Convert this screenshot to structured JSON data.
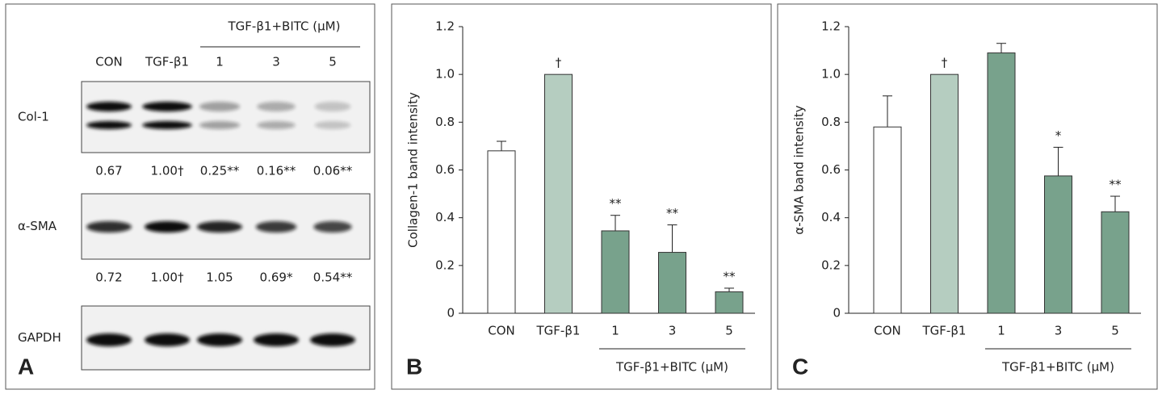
{
  "panel_a": {
    "letter": "A",
    "group_label": "TGF-β1+BITC (μM)",
    "lanes": [
      "CON",
      "TGF-β1",
      "1",
      "3",
      "5"
    ],
    "rows": [
      {
        "label": "Col-1",
        "quantities": [
          "0.67",
          "1.00†",
          "0.25**",
          "0.16**",
          "0.06**"
        ]
      },
      {
        "label": "α-SMA",
        "quantities": [
          "0.72",
          "1.00†",
          "1.05",
          "0.69*",
          "0.54**"
        ]
      },
      {
        "label": "GAPDH"
      }
    ]
  },
  "chart_data": [
    {
      "type": "bar",
      "panel": "B",
      "ylabel": "Collagen-1 band intensity",
      "group_label": "TGF-β1+BITC (μM)",
      "categories": [
        "CON",
        "TGF-β1",
        "1",
        "3",
        "5"
      ],
      "values": [
        0.68,
        1.0,
        0.345,
        0.255,
        0.09
      ],
      "errors": [
        0.04,
        0,
        0.065,
        0.115,
        0.015
      ],
      "annotations": [
        null,
        "†",
        "**",
        "**",
        "**"
      ],
      "colors": [
        "#ffffff",
        "#b5cdc0",
        "#78a28c",
        "#78a28c",
        "#78a28c"
      ],
      "ylim": [
        0,
        1.2
      ],
      "yticks": [
        0,
        0.2,
        0.4,
        0.6,
        0.8,
        {
          "value": 1,
          "label": "1.0"
        },
        1.2
      ]
    },
    {
      "type": "bar",
      "panel": "C",
      "ylabel": "α-SMA band intensity",
      "group_label": "TGF-β1+BITC (μM)",
      "categories": [
        "CON",
        "TGF-β1",
        "1",
        "3",
        "5"
      ],
      "values": [
        0.78,
        1.0,
        1.09,
        0.575,
        0.425
      ],
      "errors": [
        0.13,
        0,
        0.04,
        0.12,
        0.065
      ],
      "annotations": [
        null,
        "†",
        null,
        "*",
        "**"
      ],
      "colors": [
        "#ffffff",
        "#b5cdc0",
        "#78a28c",
        "#78a28c",
        "#78a28c"
      ],
      "ylim": [
        0,
        1.2
      ],
      "yticks": [
        0,
        0.2,
        0.4,
        0.6,
        0.8,
        {
          "value": 1,
          "label": "1.0"
        },
        1.2
      ]
    }
  ]
}
